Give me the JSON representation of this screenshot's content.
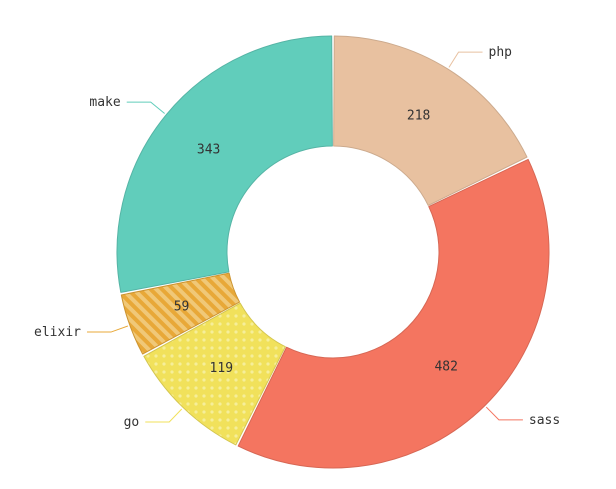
{
  "chart_data": {
    "type": "pie",
    "variant": "donut",
    "categories": [
      "php",
      "sass",
      "go",
      "elixir",
      "make"
    ],
    "values": [
      218,
      482,
      119,
      59,
      343
    ],
    "colors": [
      "#e8c1a0",
      "#f47560",
      "#f1e15b",
      "#e8a838",
      "#61cdbb"
    ],
    "patterns": {
      "go": "dots",
      "elixir": "stripes"
    },
    "title": "",
    "legend": "outer-labels"
  }
}
